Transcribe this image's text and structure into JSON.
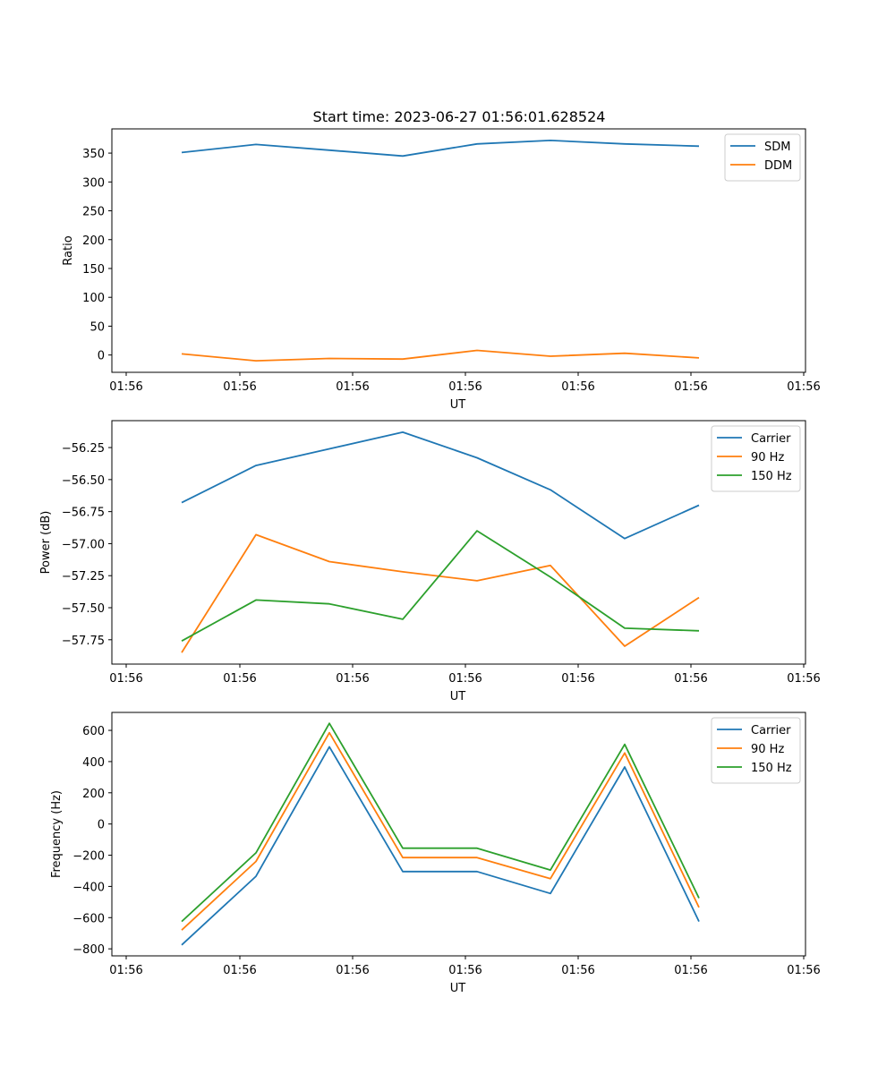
{
  "figure_title": "Start time: 2023-06-27 01:56:01.628524",
  "colors": {
    "blue": "#1f77b4",
    "orange": "#ff7f0e",
    "green": "#2ca02c"
  },
  "chart_data": [
    {
      "type": "line",
      "title": "Start time: 2023-06-27 01:56:01.628524",
      "xlabel": "UT",
      "ylabel": "Ratio",
      "x_tick_labels": [
        "01:56",
        "01:56",
        "01:56",
        "01:56",
        "01:56",
        "01:56",
        "01:56"
      ],
      "y_ticks": [
        0,
        50,
        100,
        150,
        200,
        250,
        300,
        350
      ],
      "y_tick_labels": [
        "0",
        "50",
        "100",
        "150",
        "200",
        "250",
        "300",
        "350"
      ],
      "ylim": [
        -30,
        392
      ],
      "legend": "top-right",
      "grid": false,
      "series": [
        {
          "name": "SDM",
          "color": "#1f77b4",
          "values": [
            351,
            365,
            355,
            345,
            366,
            372,
            366,
            362
          ]
        },
        {
          "name": "DDM",
          "color": "#ff7f0e",
          "values": [
            2,
            -10,
            -6,
            -7,
            8,
            -2,
            3,
            -5
          ]
        }
      ]
    },
    {
      "type": "line",
      "title": "",
      "xlabel": "UT",
      "ylabel": "Power (dB)",
      "x_tick_labels": [
        "01:56",
        "01:56",
        "01:56",
        "01:56",
        "01:56",
        "01:56",
        "01:56"
      ],
      "y_ticks": [
        -57.75,
        -57.5,
        -57.25,
        -57.0,
        -56.75,
        -56.5,
        -56.25
      ],
      "y_tick_labels": [
        "−57.75",
        "−57.50",
        "−57.25",
        "−57.00",
        "−56.75",
        "−56.50",
        "−56.25"
      ],
      "ylim": [
        -57.94,
        -56.04
      ],
      "legend": "top-right",
      "grid": false,
      "series": [
        {
          "name": "Carrier",
          "color": "#1f77b4",
          "values": [
            -56.68,
            -56.39,
            -56.26,
            -56.13,
            -56.33,
            -56.58,
            -56.96,
            -56.7
          ]
        },
        {
          "name": "90 Hz",
          "color": "#ff7f0e",
          "values": [
            -57.85,
            -56.93,
            -57.14,
            -57.22,
            -57.29,
            -57.17,
            -57.8,
            -57.42
          ]
        },
        {
          "name": "150 Hz",
          "color": "#2ca02c",
          "values": [
            -57.76,
            -57.44,
            -57.47,
            -57.59,
            -56.9,
            -57.26,
            -57.66,
            -57.68
          ]
        }
      ]
    },
    {
      "type": "line",
      "title": "",
      "xlabel": "UT",
      "ylabel": "Frequency (Hz)",
      "x_tick_labels": [
        "01:56",
        "01:56",
        "01:56",
        "01:56",
        "01:56",
        "01:56",
        "01:56"
      ],
      "y_ticks": [
        -800,
        -600,
        -400,
        -200,
        0,
        200,
        400,
        600
      ],
      "y_tick_labels": [
        "−800",
        "−600",
        "−400",
        "−200",
        "0",
        "200",
        "400",
        "600"
      ],
      "ylim": [
        -845,
        715
      ],
      "legend": "top-right",
      "grid": false,
      "series": [
        {
          "name": "Carrier",
          "color": "#1f77b4",
          "values": [
            -775,
            -335,
            495,
            -305,
            -305,
            -445,
            365,
            -625
          ]
        },
        {
          "name": "90 Hz",
          "color": "#ff7f0e",
          "values": [
            -680,
            -240,
            585,
            -215,
            -215,
            -350,
            455,
            -535
          ]
        },
        {
          "name": "150 Hz",
          "color": "#2ca02c",
          "values": [
            -625,
            -185,
            645,
            -155,
            -155,
            -295,
            510,
            -475
          ]
        }
      ]
    }
  ]
}
